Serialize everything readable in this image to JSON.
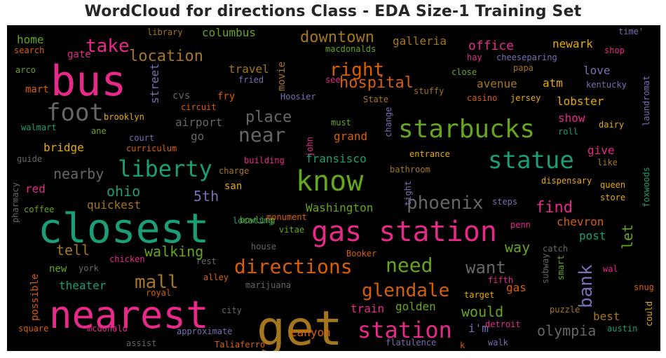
{
  "chart_data": {
    "type": "wordcloud",
    "title": "WordCloud for directions Class - EDA Size-1 Training Set",
    "background": "#000000",
    "palette": [
      "#e7298a",
      "#1b9e77",
      "#66a61e",
      "#d95f02",
      "#a6761d",
      "#7570b3",
      "#e6ab02",
      "#666666"
    ],
    "words": [
      {
        "text": "get",
        "color": "#a6761d"
      },
      {
        "text": "closest",
        "color": "#1b9e77"
      },
      {
        "text": "nearest",
        "color": "#e7298a"
      },
      {
        "text": "bus",
        "color": "#e7298a"
      },
      {
        "text": "know",
        "color": "#66a61e"
      },
      {
        "text": "gas station",
        "color": "#e7298a"
      },
      {
        "text": "starbucks",
        "color": "#66a61e"
      },
      {
        "text": "statue",
        "color": "#1b9e77"
      },
      {
        "text": "liberty",
        "color": "#1b9e77"
      },
      {
        "text": "station",
        "color": "#e7298a"
      },
      {
        "text": "directions",
        "color": "#d95f02"
      },
      {
        "text": "foot",
        "color": "#666666"
      },
      {
        "text": "near",
        "color": "#666666"
      },
      {
        "text": "need",
        "color": "#66a61e"
      },
      {
        "text": "phoenix",
        "color": "#666666"
      },
      {
        "text": "glendale",
        "color": "#d95f02"
      },
      {
        "text": "take",
        "color": "#e7298a"
      },
      {
        "text": "right",
        "color": "#d95f02"
      },
      {
        "text": "mall",
        "color": "#a6761d"
      },
      {
        "text": "want",
        "color": "#666666"
      },
      {
        "text": "bank",
        "color": "#7570b3"
      },
      {
        "text": "location",
        "color": "#a6761d"
      },
      {
        "text": "hospital",
        "color": "#d95f02"
      },
      {
        "text": "place",
        "color": "#666666"
      },
      {
        "text": "find",
        "color": "#e7298a"
      },
      {
        "text": "downtown",
        "color": "#a6761d"
      },
      {
        "text": "walking",
        "color": "#66a61e"
      },
      {
        "text": "olympia",
        "color": "#666666"
      },
      {
        "text": "nearby",
        "color": "#666666"
      },
      {
        "text": "ohio",
        "color": "#1b9e77"
      },
      {
        "text": "5th",
        "color": "#7570b3"
      },
      {
        "text": "tell",
        "color": "#a6761d"
      },
      {
        "text": "would",
        "color": "#66a61e"
      },
      {
        "text": "way",
        "color": "#66a61e"
      },
      {
        "text": "let",
        "color": "#66a61e"
      },
      {
        "text": "office",
        "color": "#e7298a"
      },
      {
        "text": "fransisco",
        "color": "#1b9e77"
      },
      {
        "text": "canyon",
        "color": "#d95f02"
      },
      {
        "text": "train",
        "color": "#e7298a"
      },
      {
        "text": "best",
        "color": "#a6761d"
      },
      {
        "text": "i'm",
        "color": "#7570b3"
      },
      {
        "text": "Washington",
        "color": "#66a61e"
      },
      {
        "text": "avenue",
        "color": "#a6761d"
      },
      {
        "text": "atm",
        "color": "#e6ab02"
      },
      {
        "text": "galleria",
        "color": "#a6761d"
      },
      {
        "text": "newark",
        "color": "#e6ab02"
      },
      {
        "text": "lobster",
        "color": "#e6ab02"
      },
      {
        "text": "chevron",
        "color": "#d95f02"
      },
      {
        "text": "post",
        "color": "#1b9e77"
      },
      {
        "text": "show",
        "color": "#e7298a"
      },
      {
        "text": "theater",
        "color": "#1b9e77"
      },
      {
        "text": "golden",
        "color": "#66a61e"
      },
      {
        "text": "grand",
        "color": "#d95f02"
      },
      {
        "text": "travel",
        "color": "#a6761d"
      },
      {
        "text": "love",
        "color": "#7570b3"
      },
      {
        "text": "quickest",
        "color": "#a6761d"
      },
      {
        "text": "bridge",
        "color": "#e6ab02"
      },
      {
        "text": "give",
        "color": "#e7298a"
      },
      {
        "text": "gas",
        "color": "#d95f02"
      },
      {
        "text": "home",
        "color": "#66a61e"
      },
      {
        "text": "columbus",
        "color": "#66a61e"
      },
      {
        "text": "gate",
        "color": "#e7298a"
      },
      {
        "text": "street",
        "color": "#7570b3"
      },
      {
        "text": "cvs",
        "color": "#666666"
      },
      {
        "text": "fry",
        "color": "#d95f02"
      },
      {
        "text": "movie",
        "color": "#a6761d"
      },
      {
        "text": "airport",
        "color": "#666666"
      },
      {
        "text": "go",
        "color": "#666666"
      },
      {
        "text": "san",
        "color": "#e6ab02"
      },
      {
        "text": "red",
        "color": "#e7298a"
      },
      {
        "text": "new",
        "color": "#66a61e"
      },
      {
        "text": "possible",
        "color": "#d95f02"
      },
      {
        "text": "mart",
        "color": "#d95f02"
      },
      {
        "text": "library",
        "color": "#a6761d"
      },
      {
        "text": "search",
        "color": "#d95f02"
      },
      {
        "text": "arco",
        "color": "#66a61e"
      },
      {
        "text": "macdonalds",
        "color": "#66a61e"
      },
      {
        "text": "cheeseparing",
        "color": "#7570b3"
      },
      {
        "text": "papa",
        "color": "#a6761d"
      },
      {
        "text": "hay",
        "color": "#e7298a"
      },
      {
        "text": "shop",
        "color": "#e7298a"
      },
      {
        "text": "time'",
        "color": "#7570b3"
      },
      {
        "text": "kentucky",
        "color": "#7570b3"
      },
      {
        "text": "laundromat",
        "color": "#7570b3"
      },
      {
        "text": "close",
        "color": "#66a61e"
      },
      {
        "text": "see",
        "color": "#e7298a"
      },
      {
        "text": "stuffy",
        "color": "#a6761d"
      },
      {
        "text": "casino",
        "color": "#d95f02"
      },
      {
        "text": "jersey",
        "color": "#e6ab02"
      },
      {
        "text": "fried",
        "color": "#7570b3"
      },
      {
        "text": "Hoosier",
        "color": "#7570b3"
      },
      {
        "text": "State",
        "color": "#a6761d"
      },
      {
        "text": "circuit",
        "color": "#d95f02"
      },
      {
        "text": "brooklyn",
        "color": "#e6ab02"
      },
      {
        "text": "walmart",
        "color": "#1b9e77"
      },
      {
        "text": "ane",
        "color": "#66a61e"
      },
      {
        "text": "court",
        "color": "#7570b3"
      },
      {
        "text": "curriculum",
        "color": "#d95f02"
      },
      {
        "text": "guide",
        "color": "#666666"
      },
      {
        "text": "john",
        "color": "#e7298a"
      },
      {
        "text": "must",
        "color": "#66a61e"
      },
      {
        "text": "change",
        "color": "#7570b3"
      },
      {
        "text": "entrance",
        "color": "#e6ab02"
      },
      {
        "text": "bathroom",
        "color": "#a6761d"
      },
      {
        "text": "dairy",
        "color": "#e6ab02"
      },
      {
        "text": "roll",
        "color": "#1b9e77"
      },
      {
        "text": "like",
        "color": "#a6761d"
      },
      {
        "text": "queen",
        "color": "#e6ab02"
      },
      {
        "text": "foxwoods",
        "color": "#1b9e77"
      },
      {
        "text": "store",
        "color": "#e6ab02"
      },
      {
        "text": "dispensary",
        "color": "#e6ab02"
      },
      {
        "text": "building",
        "color": "#e7298a"
      },
      {
        "text": "charge",
        "color": "#a6761d"
      },
      {
        "text": "pharmacy",
        "color": "#666666"
      },
      {
        "text": "coffee",
        "color": "#66a61e"
      },
      {
        "text": "locating",
        "color": "#1b9e77"
      },
      {
        "text": "tight",
        "color": "#7570b3"
      },
      {
        "text": "steps",
        "color": "#7570b3"
      },
      {
        "text": "bowling",
        "color": "#66a61e"
      },
      {
        "text": "monument",
        "color": "#d95f02"
      },
      {
        "text": "vitae",
        "color": "#66a61e"
      },
      {
        "text": "penn",
        "color": "#e7298a"
      },
      {
        "text": "house",
        "color": "#666666"
      },
      {
        "text": "catch",
        "color": "#666666"
      },
      {
        "text": "Booker",
        "color": "#d95f02"
      },
      {
        "text": "rest",
        "color": "#666666"
      },
      {
        "text": "chicken",
        "color": "#e7298a"
      },
      {
        "text": "york",
        "color": "#666666"
      },
      {
        "text": "royal",
        "color": "#d95f02"
      },
      {
        "text": "alley",
        "color": "#d95f02"
      },
      {
        "text": "marijuana",
        "color": "#666666"
      },
      {
        "text": "fifth",
        "color": "#e7298a"
      },
      {
        "text": "target",
        "color": "#e6ab02"
      },
      {
        "text": "subway",
        "color": "#666666"
      },
      {
        "text": "smart",
        "color": "#66a61e"
      },
      {
        "text": "wal",
        "color": "#e7298a"
      },
      {
        "text": "snug",
        "color": "#d95f02"
      },
      {
        "text": "puzzle",
        "color": "#a6761d"
      },
      {
        "text": "austin",
        "color": "#1b9e77"
      },
      {
        "text": "could",
        "color": "#e6ab02"
      },
      {
        "text": "detroit",
        "color": "#e7298a"
      },
      {
        "text": "city",
        "color": "#666666"
      },
      {
        "text": "square",
        "color": "#d95f02"
      },
      {
        "text": "mcdonald",
        "color": "#e7298a"
      },
      {
        "text": "approximate",
        "color": "#7570b3"
      },
      {
        "text": "assist",
        "color": "#666666"
      },
      {
        "text": "Taliaferro",
        "color": "#d95f02"
      },
      {
        "text": "flatulence",
        "color": "#7570b3"
      },
      {
        "text": "walk",
        "color": "#7570b3"
      },
      {
        "text": "k",
        "color": "#d95f02"
      }
    ]
  }
}
